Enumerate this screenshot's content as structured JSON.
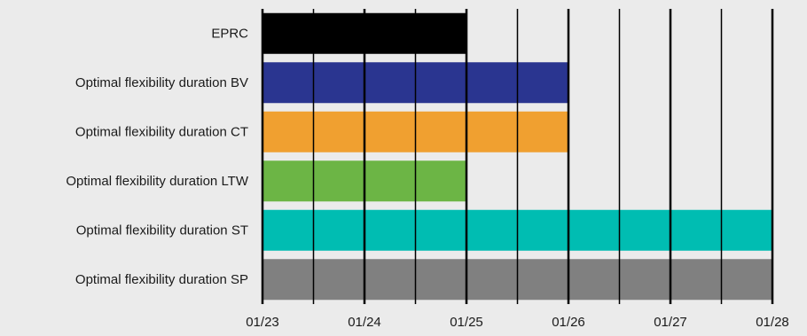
{
  "chart_data": {
    "type": "bar",
    "orientation": "horizontal",
    "title": "",
    "xlabel": "",
    "ylabel": "",
    "x_axis_type": "date",
    "xlim": [
      "01/23",
      "01/28"
    ],
    "x_ticks": [
      "01/23",
      "01/24",
      "01/25",
      "01/26",
      "01/27",
      "01/28"
    ],
    "categories": [
      "EPRC",
      "Optimal flexibility duration BV",
      "Optimal flexibility duration CT",
      "Optimal flexibility duration LTW",
      "Optimal flexibility duration ST",
      "Optimal flexibility duration SP"
    ],
    "bars": [
      {
        "start": "01/23",
        "end": "01/25",
        "color": "#000000"
      },
      {
        "start": "01/23",
        "end": "01/26",
        "color": "#2a3590"
      },
      {
        "start": "01/23",
        "end": "01/26",
        "color": "#f0a030"
      },
      {
        "start": "01/23",
        "end": "01/25",
        "color": "#6cb545"
      },
      {
        "start": "01/23",
        "end": "01/28",
        "color": "#00bdb2"
      },
      {
        "start": "01/23",
        "end": "01/28",
        "color": "#808080"
      }
    ],
    "grid": "vertical, major and minor",
    "legend": "none"
  }
}
